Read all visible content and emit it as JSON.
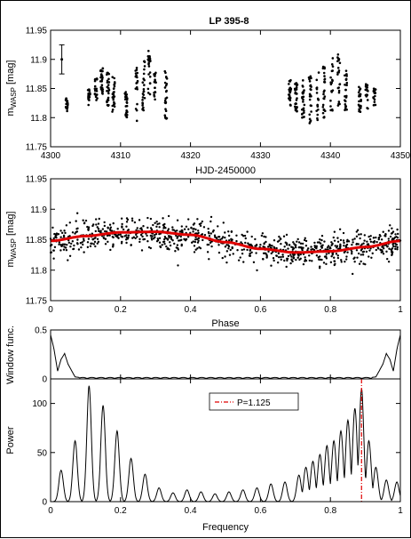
{
  "figure": {
    "title": "LP 395-8"
  },
  "chart_data": [
    {
      "id": "timeseries",
      "type": "scatter",
      "title": "LP 395-8",
      "xlabel": "HJD-2450000",
      "ylabel_main": "m",
      "ylabel_sub": "WASP",
      "ylabel_unit": " [mag]",
      "xlim": [
        4300,
        4350
      ],
      "ylim": [
        11.75,
        11.95
      ],
      "xticks": [
        "4300",
        "4310",
        "4320",
        "4330",
        "4340",
        "4350"
      ],
      "yticks": [
        "11.75",
        "11.8",
        "11.85",
        "11.9",
        "11.95"
      ],
      "errorbar": {
        "x": 4301.6,
        "y": 11.9,
        "yerr": 0.025
      },
      "clusters": [
        {
          "x": 4302.3,
          "y": [
            11.81,
            11.815,
            11.83,
            11.835
          ]
        },
        {
          "x": 4305.5,
          "y": [
            11.82,
            11.83,
            11.84,
            11.85
          ]
        },
        {
          "x": 4306.5,
          "y": [
            11.83,
            11.845,
            11.86,
            11.87
          ]
        },
        {
          "x": 4307.3,
          "y": [
            11.84,
            11.85,
            11.86,
            11.875,
            11.885
          ]
        },
        {
          "x": 4308.2,
          "y": [
            11.82,
            11.84,
            11.85,
            11.865,
            11.88
          ]
        },
        {
          "x": 4309.0,
          "y": [
            11.81,
            11.83,
            11.85,
            11.86,
            11.87
          ]
        },
        {
          "x": 4310.8,
          "y": [
            11.8,
            11.815,
            11.83,
            11.845
          ]
        },
        {
          "x": 4312.3,
          "y": [
            11.79,
            11.8,
            11.82,
            11.84,
            11.86,
            11.875,
            11.89
          ]
        },
        {
          "x": 4313.3,
          "y": [
            11.81,
            11.83,
            11.85,
            11.87,
            11.89,
            11.9
          ]
        },
        {
          "x": 4314.1,
          "y": [
            11.84,
            11.86,
            11.88,
            11.9,
            11.915
          ]
        },
        {
          "x": 4314.9,
          "y": [
            11.83,
            11.85,
            11.87,
            11.885
          ]
        },
        {
          "x": 4316.5,
          "y": [
            11.79,
            11.81,
            11.83,
            11.85,
            11.87,
            11.88
          ]
        },
        {
          "x": 4334.2,
          "y": [
            11.82,
            11.84,
            11.855,
            11.865
          ]
        },
        {
          "x": 4335.1,
          "y": [
            11.81,
            11.825,
            11.84,
            11.85,
            11.86
          ]
        },
        {
          "x": 4336.1,
          "y": [
            11.8,
            11.82,
            11.835,
            11.85,
            11.865
          ]
        },
        {
          "x": 4337.1,
          "y": [
            11.79,
            11.81,
            11.83,
            11.85,
            11.865,
            11.875
          ]
        },
        {
          "x": 4338.2,
          "y": [
            11.795,
            11.815,
            11.83,
            11.85,
            11.87,
            11.88
          ]
        },
        {
          "x": 4339.1,
          "y": [
            11.8,
            11.82,
            11.84,
            11.86,
            11.88,
            11.89
          ]
        },
        {
          "x": 4340.2,
          "y": [
            11.81,
            11.83,
            11.85,
            11.87,
            11.89,
            11.905
          ]
        },
        {
          "x": 4341.2,
          "y": [
            11.82,
            11.84,
            11.86,
            11.88,
            11.9,
            11.91
          ]
        },
        {
          "x": 4342.2,
          "y": [
            11.81,
            11.83,
            11.85,
            11.87,
            11.885
          ]
        },
        {
          "x": 4344.2,
          "y": [
            11.81,
            11.825,
            11.84,
            11.855
          ]
        },
        {
          "x": 4345.2,
          "y": [
            11.815,
            11.83,
            11.845,
            11.86
          ]
        },
        {
          "x": 4346.3,
          "y": [
            11.82,
            11.835,
            11.85
          ]
        }
      ]
    },
    {
      "id": "phased",
      "type": "scatter",
      "xlabel": "Phase",
      "ylabel_main": "m",
      "ylabel_sub": "WASP",
      "ylabel_unit": " [mag]",
      "xlim": [
        0,
        1
      ],
      "ylim": [
        11.75,
        11.95
      ],
      "xticks": [
        "0",
        "0.2",
        "0.4",
        "0.6",
        "0.8",
        "1"
      ],
      "yticks": [
        "11.75",
        "11.8",
        "11.85",
        "11.9",
        "11.95"
      ],
      "model_color": "#e00000",
      "model": {
        "x": [
          0,
          0.1,
          0.2,
          0.3,
          0.4,
          0.5,
          0.6,
          0.7,
          0.8,
          0.9,
          1.0
        ],
        "y": [
          11.848,
          11.856,
          11.862,
          11.863,
          11.858,
          11.846,
          11.835,
          11.829,
          11.831,
          11.838,
          11.848
        ]
      },
      "scatter_sigma": 0.017,
      "n_points": 900
    },
    {
      "id": "window",
      "type": "line",
      "ylabel": "Window func.",
      "xlim": [
        0,
        1
      ],
      "ylim": [
        0,
        0.5
      ],
      "yticks": [
        "0",
        "0.5"
      ],
      "x": [
        0,
        0.01,
        0.02,
        0.03,
        0.04,
        0.05,
        0.07,
        0.1,
        0.2,
        0.3,
        0.4,
        0.5,
        0.6,
        0.7,
        0.8,
        0.9,
        0.93,
        0.95,
        0.96,
        0.97,
        0.98,
        0.99,
        1.0
      ],
      "y": [
        0.45,
        0.3,
        0.08,
        0.2,
        0.26,
        0.15,
        0.02,
        0.01,
        0.01,
        0.01,
        0.02,
        0.01,
        0.01,
        0.01,
        0.01,
        0.01,
        0.02,
        0.15,
        0.26,
        0.2,
        0.08,
        0.3,
        0.45
      ]
    },
    {
      "id": "periodogram",
      "type": "line",
      "xlabel": "Frequency",
      "ylabel": "Power",
      "xlim": [
        0,
        1
      ],
      "ylim": [
        0,
        125
      ],
      "xticks": [
        "0",
        "0.2",
        "0.4",
        "0.6",
        "0.8",
        "1"
      ],
      "yticks": [
        "0",
        "50",
        "100"
      ],
      "peaks": [
        {
          "f": 0.03,
          "p": 32
        },
        {
          "f": 0.07,
          "p": 62
        },
        {
          "f": 0.11,
          "p": 118
        },
        {
          "f": 0.15,
          "p": 98
        },
        {
          "f": 0.19,
          "p": 72
        },
        {
          "f": 0.23,
          "p": 44
        },
        {
          "f": 0.27,
          "p": 28
        },
        {
          "f": 0.31,
          "p": 14
        },
        {
          "f": 0.35,
          "p": 9
        },
        {
          "f": 0.39,
          "p": 12
        },
        {
          "f": 0.43,
          "p": 10
        },
        {
          "f": 0.47,
          "p": 8
        },
        {
          "f": 0.51,
          "p": 10
        },
        {
          "f": 0.55,
          "p": 12
        },
        {
          "f": 0.59,
          "p": 14
        },
        {
          "f": 0.63,
          "p": 18
        },
        {
          "f": 0.67,
          "p": 20
        },
        {
          "f": 0.71,
          "p": 27
        },
        {
          "f": 0.73,
          "p": 35
        },
        {
          "f": 0.75,
          "p": 41
        },
        {
          "f": 0.77,
          "p": 48
        },
        {
          "f": 0.79,
          "p": 57
        },
        {
          "f": 0.81,
          "p": 62
        },
        {
          "f": 0.83,
          "p": 72
        },
        {
          "f": 0.85,
          "p": 83
        },
        {
          "f": 0.87,
          "p": 95
        },
        {
          "f": 0.889,
          "p": 115
        },
        {
          "f": 0.91,
          "p": 62
        },
        {
          "f": 0.93,
          "p": 35
        },
        {
          "f": 0.96,
          "p": 22
        },
        {
          "f": 0.99,
          "p": 20
        }
      ],
      "marker_period": {
        "label": "P=1.125",
        "freq": 0.889,
        "color": "#e00000"
      }
    }
  ]
}
